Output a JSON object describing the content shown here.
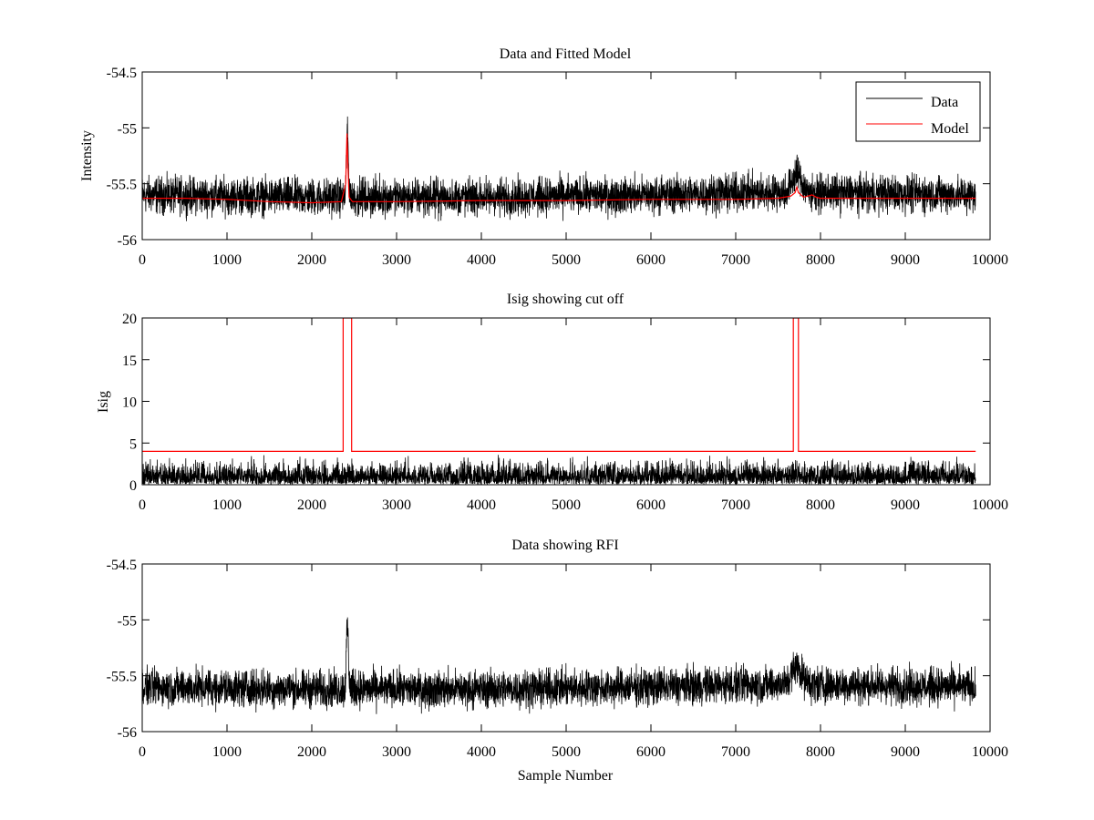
{
  "chart_data": [
    {
      "type": "line",
      "title": "Data and Fitted Model",
      "xlabel": "",
      "ylabel": "Intensity",
      "xlim": [
        0,
        10000
      ],
      "ylim": [
        -56,
        -54.5
      ],
      "xticks": [
        "0",
        "1000",
        "2000",
        "3000",
        "4000",
        "5000",
        "6000",
        "7000",
        "8000",
        "9000",
        "10000"
      ],
      "yticks": [
        "-54.5",
        "-55",
        "-55.5",
        "-56"
      ],
      "grid": false,
      "legend": {
        "placement": "top-right",
        "entries": [
          "Data",
          "Model"
        ]
      },
      "colors": {
        "Data": "#000000",
        "Model": "#ff0000"
      },
      "series": [
        {
          "name": "Data",
          "kind": "noisy",
          "n_samples": 9830,
          "baseline": [
            [
              0,
              -55.6
            ],
            [
              2000,
              -55.62
            ],
            [
              4000,
              -55.62
            ],
            [
              6000,
              -55.6
            ],
            [
              7000,
              -55.58
            ],
            [
              8000,
              -55.58
            ],
            [
              9830,
              -55.6
            ]
          ],
          "noise_range": 0.22,
          "peaks": [
            {
              "x": 2420,
              "y": -54.97,
              "note": "spike"
            },
            {
              "x": 7720,
              "y": -55.38,
              "note": "bump"
            }
          ]
        },
        {
          "name": "Model",
          "x": [
            0,
            500,
            1000,
            1500,
            2000,
            2350,
            2400,
            2415,
            2425,
            2440,
            2480,
            3000,
            4000,
            5000,
            6000,
            7000,
            7500,
            7650,
            7700,
            7720,
            7740,
            7800,
            7850,
            7900,
            7950,
            8000,
            8500,
            9000,
            9830
          ],
          "y": [
            -55.63,
            -55.63,
            -55.64,
            -55.66,
            -55.67,
            -55.66,
            -55.5,
            -55.05,
            -55.3,
            -55.62,
            -55.66,
            -55.66,
            -55.65,
            -55.65,
            -55.64,
            -55.64,
            -55.63,
            -55.61,
            -55.58,
            -55.53,
            -55.58,
            -55.62,
            -55.61,
            -55.6,
            -55.62,
            -55.63,
            -55.63,
            -55.63,
            -55.63
          ]
        }
      ]
    },
    {
      "type": "line",
      "title": "Isig showing cut off",
      "xlabel": "",
      "ylabel": "Isig",
      "xlim": [
        0,
        10000
      ],
      "ylim": [
        0,
        20
      ],
      "xticks": [
        "0",
        "1000",
        "2000",
        "3000",
        "4000",
        "5000",
        "6000",
        "7000",
        "8000",
        "9000",
        "10000"
      ],
      "yticks": [
        "20",
        "15",
        "10",
        "5",
        "0"
      ],
      "grid": false,
      "colors": {
        "signal": "#000000",
        "cutoff": "#ff0000"
      },
      "series": [
        {
          "kind": "noisy",
          "n_samples": 9830,
          "baseline": [
            [
              0,
              0.9
            ],
            [
              9830,
              0.9
            ]
          ],
          "noise_range": 2.4
        },
        {
          "x": [
            0,
            2370,
            2370,
            2470,
            2470,
            7680,
            7680,
            7740,
            7740,
            9830
          ],
          "y": [
            4,
            4,
            20,
            20,
            4,
            4,
            20,
            20,
            4,
            4
          ]
        }
      ]
    },
    {
      "type": "line",
      "title": "Data showing RFI",
      "xlabel": "Sample Number",
      "ylabel": "",
      "xlim": [
        0,
        10000
      ],
      "ylim": [
        -56,
        -54.5
      ],
      "xticks": [
        "0",
        "1000",
        "2000",
        "3000",
        "4000",
        "5000",
        "6000",
        "7000",
        "8000",
        "9000",
        "10000"
      ],
      "yticks": [
        "-54.5",
        "-55",
        "-55.5",
        "-56"
      ],
      "grid": false,
      "colors": {
        "Data": "#000000"
      },
      "series": [
        {
          "kind": "noisy",
          "n_samples": 9830,
          "baseline": [
            [
              0,
              -55.6
            ],
            [
              2000,
              -55.62
            ],
            [
              4000,
              -55.62
            ],
            [
              6000,
              -55.6
            ],
            [
              7000,
              -55.58
            ],
            [
              8000,
              -55.58
            ],
            [
              9830,
              -55.6
            ]
          ],
          "noise_range": 0.22,
          "peaks": [
            {
              "x": 2420,
              "y": -54.97,
              "note": "spike"
            },
            {
              "x": 7720,
              "y": -55.38,
              "note": "bump"
            }
          ]
        }
      ]
    }
  ]
}
